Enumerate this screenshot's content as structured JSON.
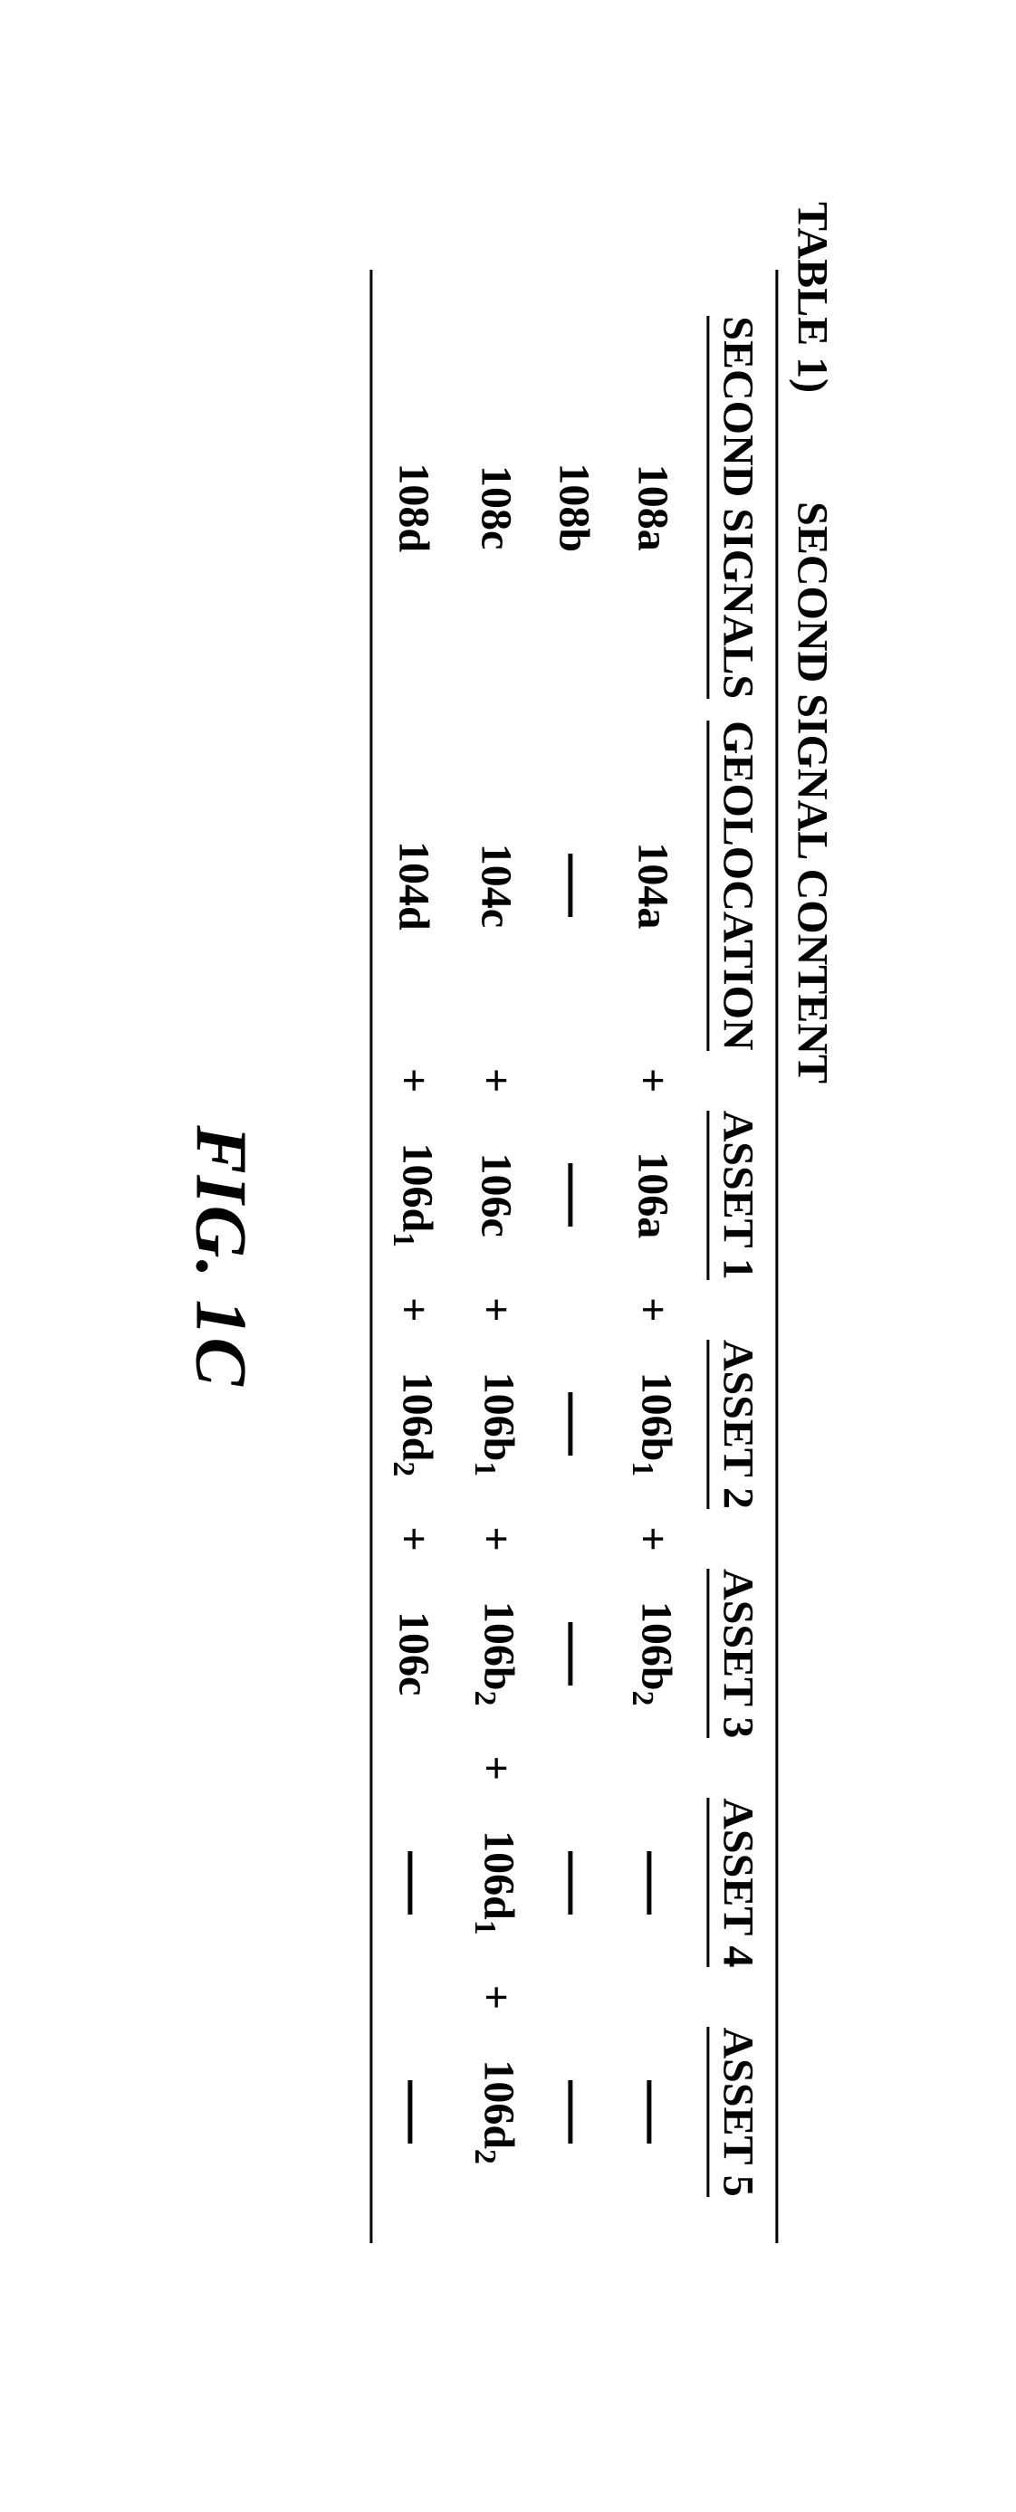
{
  "table_label": "TABLE 1)",
  "table_title": "SECOND SIGNAL CONTENT",
  "caption": "FIG. 1C",
  "headers": {
    "signals": "SECOND SIGNALS",
    "geo": "GEOLOCATION",
    "a1": "ASSET 1",
    "a2": "ASSET 2",
    "a3": "ASSET 3",
    "a4": "ASSET 4",
    "a5": "ASSET 5"
  },
  "rows": [
    {
      "sig": "108a",
      "geo": "104a",
      "a1": {
        "html": "106a"
      },
      "a2": {
        "html": "106b<sub>1</sub>"
      },
      "a3": {
        "html": "106b<sub>2</sub>"
      },
      "a4": null,
      "a5": null,
      "sep": "+"
    },
    {
      "sig": "108b",
      "geo": null,
      "a1": null,
      "a2": null,
      "a3": null,
      "a4": null,
      "a5": null,
      "sep": null
    },
    {
      "sig": "108c",
      "geo": "104c",
      "a1": {
        "html": "106c"
      },
      "a2": {
        "html": "106b<sub>1</sub>"
      },
      "a3": {
        "html": "106b<sub>2</sub>"
      },
      "a4": {
        "html": "106d<sub>1</sub>"
      },
      "a5": {
        "html": "106d<sub>2</sub>"
      },
      "sep": "+"
    },
    {
      "sig": "108d",
      "geo": "104d",
      "a1": {
        "html": "106d<sub>1</sub>"
      },
      "a2": {
        "html": "106d<sub>2</sub>"
      },
      "a3": {
        "html": "106c"
      },
      "a4": null,
      "a5": null,
      "sep": "+"
    }
  ]
}
